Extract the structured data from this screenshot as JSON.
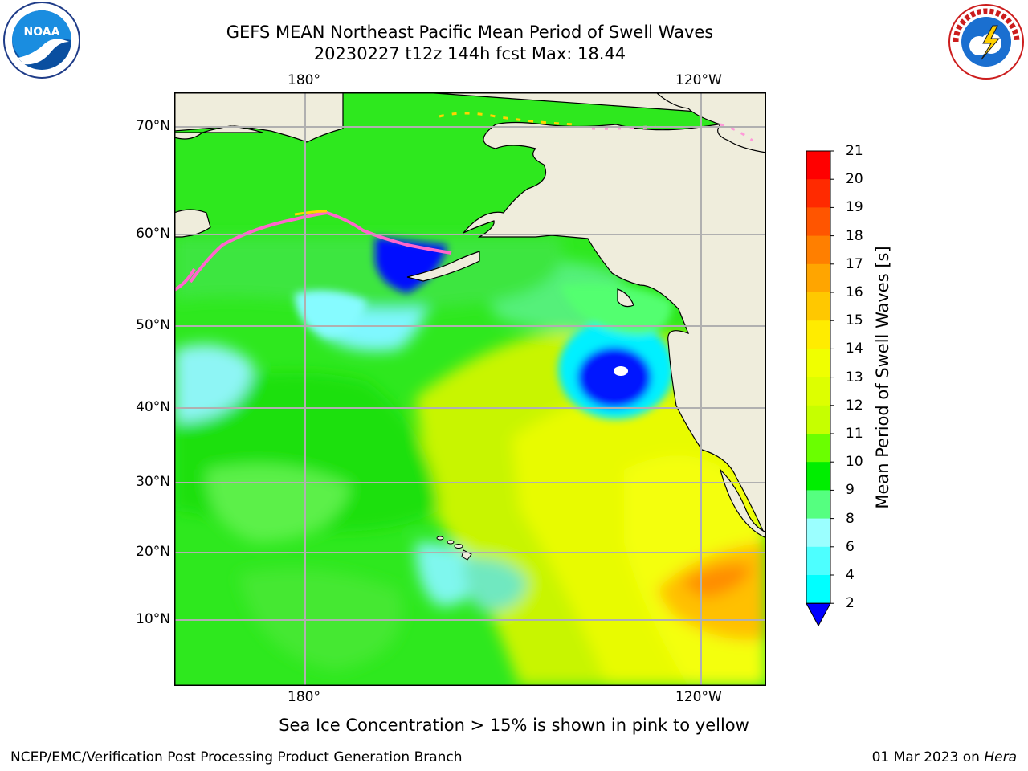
{
  "title": {
    "line1": "GEFS MEAN Northeast Pacific Mean Period of Swell Waves",
    "line2": "20230227 t12z 144h fcst   Max: 18.44"
  },
  "logos": {
    "left": {
      "name": "noaa-logo",
      "text": "NOAA"
    },
    "right": {
      "name": "nws-logo",
      "text": "NATIONAL WEATHER SERVICE"
    }
  },
  "map": {
    "lon_labels_top": [
      "180°",
      "120°W"
    ],
    "lon_labels_bottom": [
      "180°",
      "120°W"
    ],
    "lat_labels": [
      "70°N",
      "60°N",
      "50°N",
      "40°N",
      "30°N",
      "20°N",
      "10°N"
    ],
    "colors": {
      "land": "#efeddc",
      "coast": "#000000",
      "grid": "#b0b0b0",
      "ice": "#ff66cc"
    }
  },
  "colorbar": {
    "label": "Mean Period of Swell Waves [s]",
    "ticks": [
      "21",
      "20",
      "19",
      "18",
      "17",
      "16",
      "15",
      "14",
      "13",
      "12",
      "11",
      "10",
      "9",
      "8",
      "6",
      "4",
      "2"
    ],
    "colors_top_to_bottom": [
      "#ff0000",
      "#ff2a00",
      "#ff5500",
      "#ff7f00",
      "#ffa500",
      "#ffc800",
      "#ffec00",
      "#f0ff00",
      "#ddff00",
      "#c6ff00",
      "#6aff00",
      "#00ee00",
      "#55ff80",
      "#9bffff",
      "#4dffff",
      "#00ffff",
      "#0080ff"
    ],
    "extend_color": "#0000ff"
  },
  "note": "Sea Ice Concentration > 15% is shown in pink to yellow",
  "footer": {
    "left": "NCEP/EMC/Verification Post Processing Product Generation Branch",
    "right_prefix": "01 Mar 2023 on ",
    "right_host": "Hera"
  }
}
